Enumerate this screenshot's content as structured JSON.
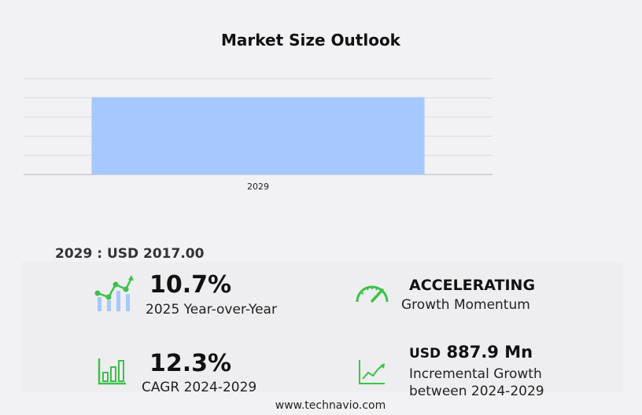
{
  "chart_data": {
    "type": "bar",
    "title": "Market Size Outlook",
    "categories": [
      "2029"
    ],
    "values": [
      2017.0
    ],
    "xlabel": "",
    "ylabel": "",
    "ylim": [
      0,
      2500
    ],
    "grid": true,
    "bar_color": "#a6c8ff"
  },
  "summary": {
    "label": "2029 : USD  2017.00"
  },
  "stats": {
    "yoy_value": "10.7%",
    "yoy_label": "2025 Year-over-Year",
    "momentum_value": "ACCELERATING",
    "momentum_label": "Growth Momentum",
    "cagr_value": "12.3%",
    "cagr_label": "CAGR 2024-2029",
    "incremental_currency": "USD",
    "incremental_value": "887.9 Mn",
    "incremental_label_1": "Incremental Growth",
    "incremental_label_2": "between 2024-2029"
  },
  "icons": {
    "yoy": "bar-chart-trend-icon",
    "momentum": "speedometer-icon",
    "cagr": "bar-chart-growth-icon",
    "incremental": "line-chart-growth-icon"
  },
  "colors": {
    "icon_green": "#3cc24a",
    "icon_blue_light": "#a6c8ff"
  },
  "footer": {
    "site": "www.technavio.com"
  }
}
